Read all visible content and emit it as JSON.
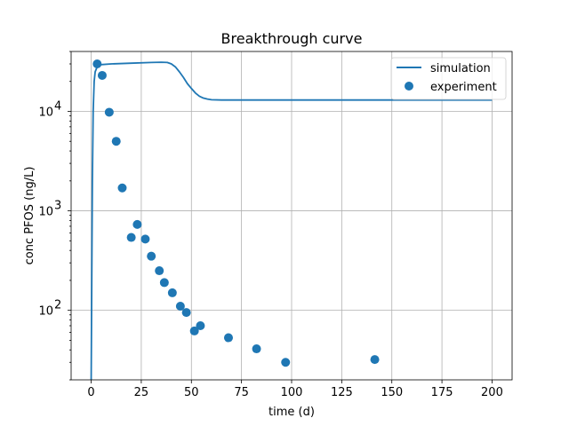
{
  "chart_data": {
    "type": "line+scatter",
    "title": "Breakthrough curve",
    "xlabel": "time (d)",
    "ylabel": "conc PFOS (ng/L)",
    "xlim": [
      -10,
      210
    ],
    "ylim": [
      20,
      40000
    ],
    "yscale": "log",
    "grid": true,
    "legend_position": "top-right",
    "x_ticks": [
      0,
      25,
      50,
      75,
      100,
      125,
      150,
      175,
      200
    ],
    "x_tick_labels": [
      "0",
      "25",
      "50",
      "75",
      "100",
      "125",
      "150",
      "175",
      "200"
    ],
    "y_ticks": [
      100,
      1000,
      10000
    ],
    "y_tick_labels": [
      "10",
      "10",
      "10"
    ],
    "y_tick_exponents": [
      "2",
      "3",
      "4"
    ],
    "series": [
      {
        "name": "simulation",
        "kind": "line",
        "color": "#1f77b4",
        "x": [
          0,
          0.3,
          0.6,
          1,
          1.5,
          2,
          3,
          5,
          10,
          20,
          30,
          35,
          38,
          40,
          42,
          44,
          46,
          48,
          50,
          52,
          54,
          56,
          58,
          60,
          65,
          70,
          80,
          100,
          150,
          200
        ],
        "y": [
          20,
          200,
          2000,
          10000,
          20000,
          25000,
          28000,
          29500,
          30000,
          30500,
          31000,
          31200,
          31000,
          30000,
          28000,
          25000,
          22000,
          19000,
          17000,
          15300,
          14200,
          13600,
          13300,
          13100,
          13000,
          13000,
          13000,
          13000,
          13000,
          13000
        ]
      },
      {
        "name": "experiment",
        "kind": "scatter",
        "color": "#1f77b4",
        "x": [
          3,
          5.5,
          9,
          12.5,
          15.5,
          20,
          23,
          27,
          30,
          34,
          36.5,
          40.5,
          44.5,
          47.5,
          51.5,
          54.5,
          68.5,
          82.5,
          97,
          141.5
        ],
        "y": [
          30000,
          23000,
          9800,
          5000,
          1700,
          540,
          730,
          520,
          350,
          250,
          190,
          150,
          110,
          95,
          62,
          70,
          53,
          41,
          30,
          32
        ]
      }
    ]
  }
}
